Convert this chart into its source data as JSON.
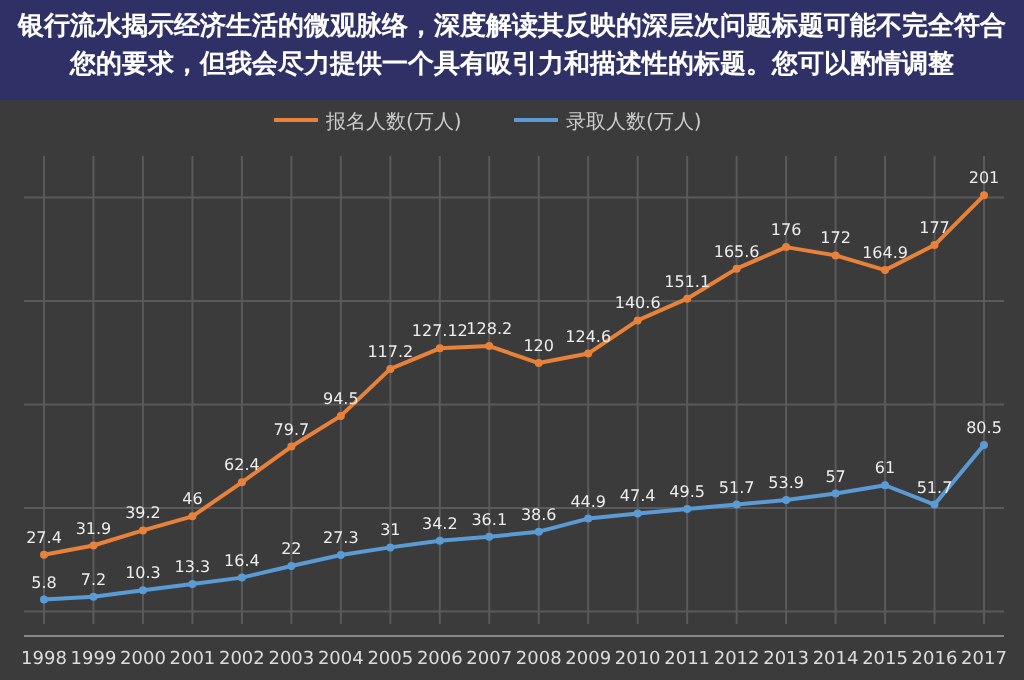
{
  "chart_data": {
    "type": "line",
    "title": "银行流水揭示经济生活的微观脉络，深度解读其反映的深层次问题标题可能不完全符合您的要求，但我会尽力提供一个具有吸引力和描述性的标题。您可以酌情调整",
    "categories": [
      "1998",
      "1999",
      "2000",
      "2001",
      "2002",
      "2003",
      "2004",
      "2005",
      "2006",
      "2007",
      "2008",
      "2009",
      "2010",
      "2011",
      "2012",
      "2013",
      "2014",
      "2015",
      "2016",
      "2017"
    ],
    "series": [
      {
        "name": "报名人数(万人)",
        "color": "#e8823a",
        "values": [
          27.4,
          31.9,
          39.2,
          46,
          62.4,
          79.7,
          94.5,
          117.2,
          127.12,
          128.2,
          120,
          124.6,
          140.6,
          151.1,
          165.6,
          176,
          172,
          164.9,
          177,
          201
        ]
      },
      {
        "name": "录取人数(万人)",
        "color": "#5b9bd5",
        "values": [
          5.8,
          7.2,
          10.3,
          13.3,
          16.4,
          22,
          27.3,
          31,
          34.2,
          36.1,
          38.6,
          44.9,
          47.4,
          49.5,
          51.7,
          53.9,
          57,
          61,
          51.7,
          80.5
        ]
      }
    ],
    "ylim": [
      -6,
      220
    ],
    "yticks": [
      {
        "value": 0,
        "label": null
      },
      {
        "value": 50,
        "label": null
      },
      {
        "value": 100,
        "label": null
      },
      {
        "value": 150,
        "label": null
      },
      {
        "value": 200,
        "label": null
      }
    ],
    "tick_labels": "x",
    "grid": true,
    "legend": "top",
    "marker": "circle",
    "line_style": "solid",
    "data_labels": true
  }
}
